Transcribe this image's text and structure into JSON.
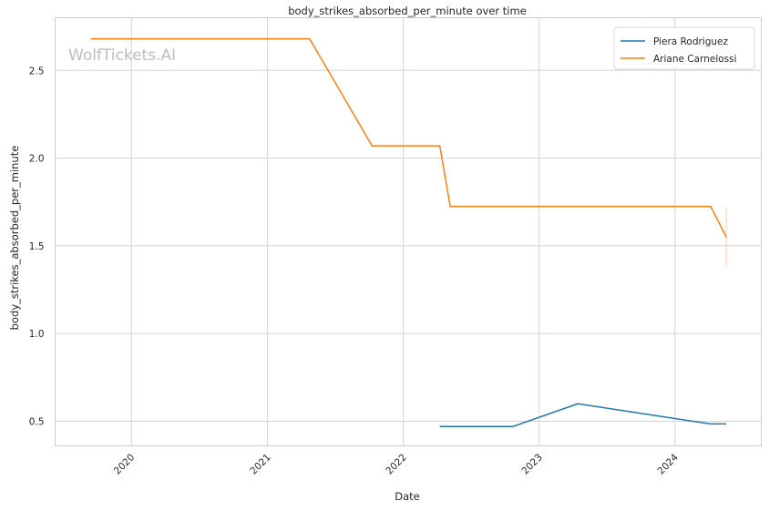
{
  "chart_data": {
    "type": "line",
    "title": "body_strikes_absorbed_per_minute over time",
    "xlabel": "Date",
    "ylabel": "body_strikes_absorbed_per_minute",
    "watermark": "WolfTickets.AI",
    "x_type": "date",
    "xlim": [
      "2019-06-10",
      "2024-08-20"
    ],
    "ylim": [
      0.36,
      2.8
    ],
    "x_ticks": [
      {
        "date": "2020-01-01",
        "label": "2020"
      },
      {
        "date": "2021-01-01",
        "label": "2021"
      },
      {
        "date": "2022-01-01",
        "label": "2022"
      },
      {
        "date": "2023-01-01",
        "label": "2023"
      },
      {
        "date": "2024-01-01",
        "label": "2024"
      }
    ],
    "y_ticks": [
      0.5,
      1.0,
      1.5,
      2.0,
      2.5
    ],
    "y_tick_labels": [
      "0.5",
      "1.0",
      "1.5",
      "2.0",
      "2.5"
    ],
    "grid": true,
    "legend": "top-right",
    "series": [
      {
        "name": "Piera Rodriguez",
        "color": "#1f77b4",
        "points": [
          {
            "x": "2022-04-09",
            "y": 0.47
          },
          {
            "x": "2022-10-22",
            "y": 0.47
          },
          {
            "x": "2023-04-15",
            "y": 0.6
          },
          {
            "x": "2024-04-06",
            "y": 0.485
          },
          {
            "x": "2024-05-18",
            "y": 0.485
          }
        ]
      },
      {
        "name": "Ariane Carnelossi",
        "color": "#ff7f0e",
        "points": [
          {
            "x": "2019-09-14",
            "y": 2.68
          },
          {
            "x": "2021-04-24",
            "y": 2.68
          },
          {
            "x": "2021-10-09",
            "y": 2.07
          },
          {
            "x": "2022-04-09",
            "y": 2.07
          },
          {
            "x": "2022-05-07",
            "y": 1.725
          },
          {
            "x": "2024-04-06",
            "y": 1.725
          },
          {
            "x": "2024-05-18",
            "y": 1.55
          }
        ],
        "error_band": {
          "x": "2024-05-18",
          "low": 1.38,
          "high": 1.72
        }
      }
    ]
  }
}
